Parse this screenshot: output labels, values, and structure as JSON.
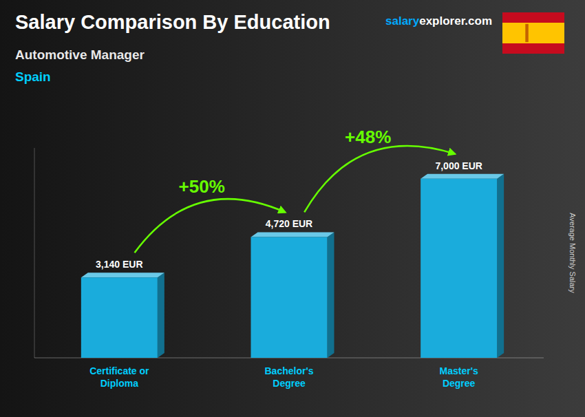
{
  "chart_data": {
    "type": "bar",
    "title": "Salary Comparison By Education",
    "subtitle": "Automotive Manager",
    "country": "Spain",
    "brand": [
      "salary",
      "explorer.com"
    ],
    "categories": [
      "Certificate or\nDiploma",
      "Bachelor's\nDegree",
      "Master's\nDegree"
    ],
    "values": [
      3140,
      4720,
      7000
    ],
    "value_labels": [
      "3,140 EUR",
      "4,720 EUR",
      "7,000 EUR"
    ],
    "data_labels": true,
    "annotations": [
      "+50%",
      "+48%"
    ],
    "ylabel": "Average Monthly Salary",
    "ylim": [
      0,
      8200
    ],
    "tick_labels": "x",
    "grid": false,
    "color": "#1AACDC"
  }
}
